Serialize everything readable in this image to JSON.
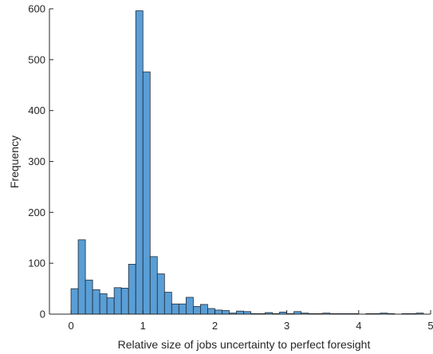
{
  "chart_data": {
    "type": "bar",
    "title": "",
    "xlabel": "Relative size of jobs uncertainty to perfect foresight",
    "ylabel": "Frequency",
    "bin_width": 0.1,
    "bin_starts": [
      0,
      0.1,
      0.2,
      0.3,
      0.4,
      0.5,
      0.6,
      0.7,
      0.8,
      0.9,
      1.0,
      1.1,
      1.2,
      1.3,
      1.4,
      1.5,
      1.6,
      1.7,
      1.8,
      1.9,
      2.0,
      2.1,
      2.2,
      2.3,
      2.4,
      2.5,
      2.6,
      2.7,
      2.8,
      2.9,
      3.0,
      3.1,
      3.2,
      3.3,
      3.4,
      3.5,
      3.6,
      3.7,
      3.8,
      3.9,
      4.0,
      4.1,
      4.2,
      4.3,
      4.4,
      4.5,
      4.6,
      4.7,
      4.8,
      4.9
    ],
    "values": [
      50,
      146,
      67,
      48,
      40,
      32,
      52,
      51,
      98,
      596,
      476,
      113,
      79,
      43,
      20,
      20,
      33,
      15,
      19,
      11,
      8,
      7,
      2,
      6,
      5,
      1,
      1,
      3,
      1,
      4,
      1,
      5,
      2,
      1,
      1,
      2,
      1,
      1,
      1,
      1,
      0,
      1,
      1,
      2,
      1,
      0,
      1,
      1,
      2,
      0
    ],
    "xlim": [
      -0.3,
      5
    ],
    "ylim": [
      0,
      600
    ],
    "xticks": [
      0,
      1,
      2,
      3,
      4,
      5
    ],
    "xtick_labels": [
      "0",
      "1",
      "2",
      "3",
      "4",
      "5"
    ],
    "yticks": [
      0,
      100,
      200,
      300,
      400,
      500,
      600
    ],
    "ytick_labels": [
      "0",
      "100",
      "200",
      "300",
      "400",
      "500",
      "600"
    ],
    "bar_color": "#5a9ed6",
    "edge_color": "#1f2a36",
    "grid": false,
    "legend": false
  }
}
